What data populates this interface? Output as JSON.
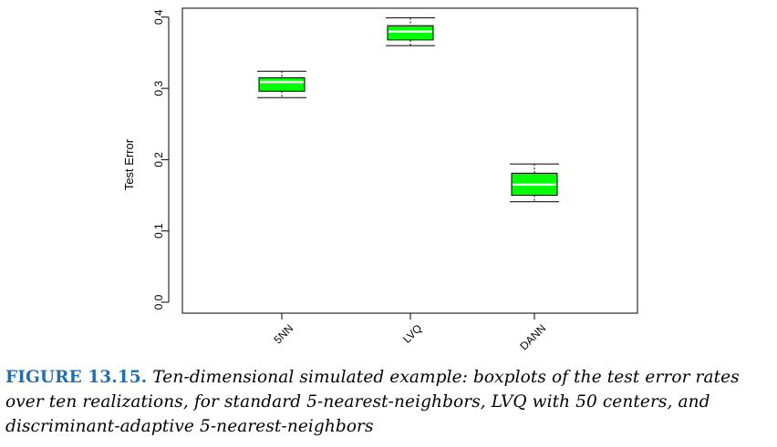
{
  "chart_data": {
    "type": "boxplot",
    "ylabel": "Test Error",
    "ylim": [
      0.0,
      0.42
    ],
    "yticks": [
      "0.0",
      "0.1",
      "0.2",
      "0.3",
      "0.4"
    ],
    "categories": [
      "5NN",
      "LVQ",
      "DANN"
    ],
    "boxes": [
      {
        "name": "5NN",
        "whisker_low": 0.287,
        "q1": 0.296,
        "median": 0.309,
        "q3": 0.315,
        "whisker_high": 0.324
      },
      {
        "name": "LVQ",
        "whisker_low": 0.36,
        "q1": 0.368,
        "median": 0.38,
        "q3": 0.388,
        "whisker_high": 0.399
      },
      {
        "name": "DANN",
        "whisker_low": 0.141,
        "q1": 0.15,
        "median": 0.165,
        "q3": 0.181,
        "whisker_high": 0.194
      }
    ],
    "box_color": "#00ff00",
    "median_color": "#ffffff",
    "grid": false
  },
  "caption": {
    "label": "FIGURE 13.15.",
    "text": "Ten-dimensional simulated example: boxplots of the test error rates over ten realizations, for standard 5-nearest-neighbors, LVQ with 50 centers, and discriminant-adaptive 5-nearest-neighbors"
  }
}
